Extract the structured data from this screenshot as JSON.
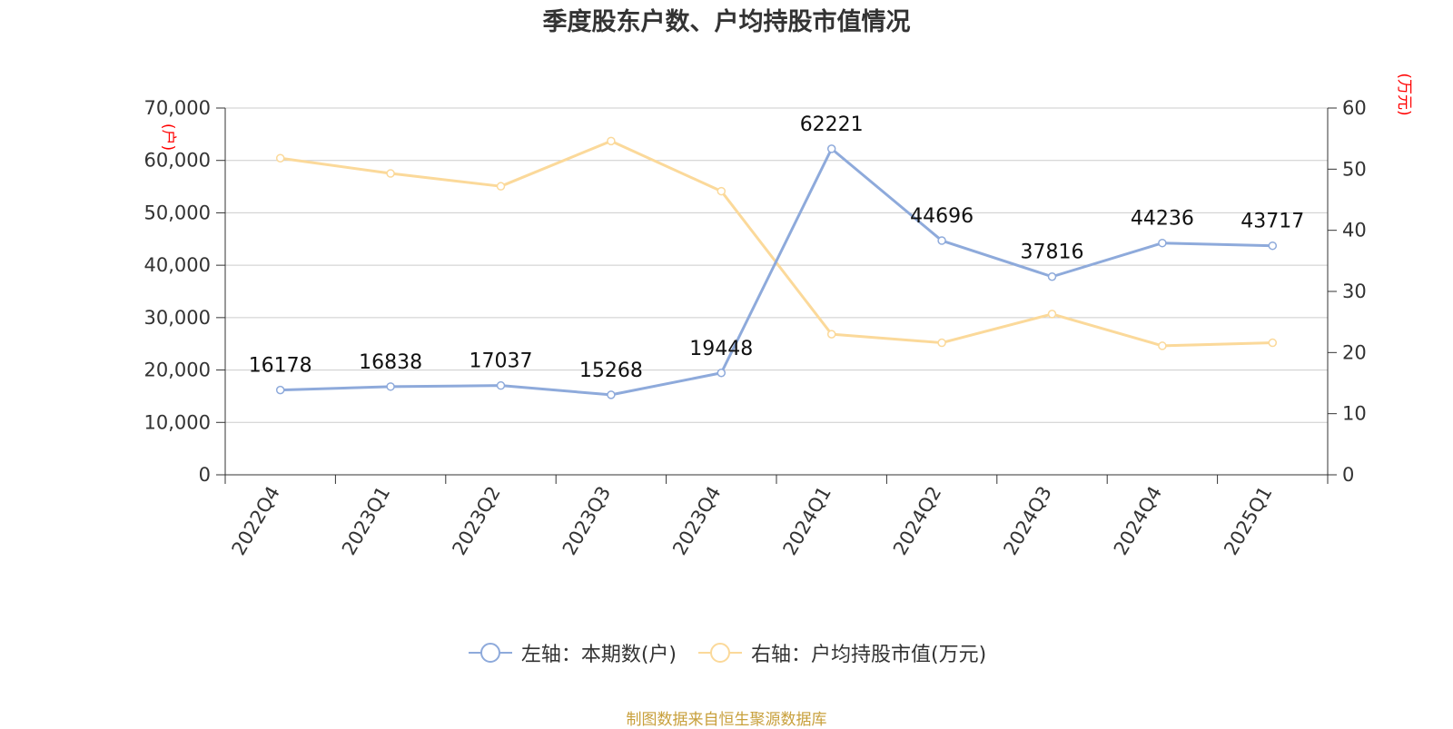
{
  "chart_data": {
    "type": "line",
    "title": "季度股东户数、户均持股市值情况",
    "categories": [
      "2022Q4",
      "2023Q1",
      "2023Q2",
      "2023Q3",
      "2023Q4",
      "2024Q1",
      "2024Q2",
      "2024Q3",
      "2024Q4",
      "2025Q1"
    ],
    "series": [
      {
        "name": "左轴：本期数(户)",
        "axis": "left",
        "color": "#8eaadb",
        "values": [
          16178,
          16838,
          17037,
          15268,
          19448,
          62221,
          44696,
          37816,
          44236,
          43717
        ],
        "data_labels": [
          "16178",
          "16838",
          "17037",
          "15268",
          "19448",
          "62221",
          "44696",
          "37816",
          "44236",
          "43717"
        ]
      },
      {
        "name": "右轴：户均持股市值(万元)",
        "axis": "right",
        "color": "#fbd99a",
        "values": [
          51.8,
          49.3,
          47.2,
          54.6,
          46.4,
          23.0,
          21.6,
          26.3,
          21.1,
          21.6
        ]
      }
    ],
    "y_left": {
      "unit": "(户)",
      "ylim": [
        0,
        70000
      ],
      "ticks": [
        0,
        10000,
        20000,
        30000,
        40000,
        50000,
        60000,
        70000
      ],
      "tick_labels": [
        "0",
        "10,000",
        "20,000",
        "30,000",
        "40,000",
        "50,000",
        "60,000",
        "70,000"
      ]
    },
    "y_right": {
      "unit": "(万元)",
      "ylim": [
        0,
        60
      ],
      "ticks": [
        0,
        10,
        20,
        30,
        40,
        50,
        60
      ],
      "tick_labels": [
        "0",
        "10",
        "20",
        "30",
        "40",
        "50",
        "60"
      ]
    },
    "grid": true,
    "legend_position": "bottom-center"
  },
  "source_note": "制图数据来自恒生聚源数据库",
  "colors": {
    "source_note": "#c8a03c",
    "grid": "#cccccc",
    "axis": "#333333"
  }
}
